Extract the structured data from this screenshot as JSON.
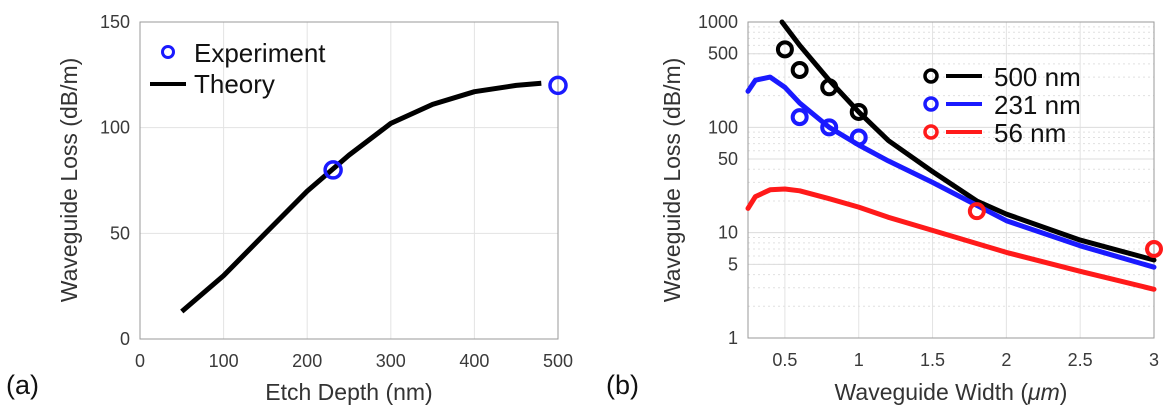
{
  "chart_data": [
    {
      "panel_label": "(a)",
      "type": "line",
      "xlabel": "Etch Depth (nm)",
      "ylabel": "Waveguide Loss (dB/m)",
      "xlim": [
        0,
        500
      ],
      "ylim": [
        0,
        150
      ],
      "xticks": [
        0,
        100,
        200,
        300,
        400,
        500
      ],
      "yticks": [
        0,
        50,
        100,
        150
      ],
      "grid": true,
      "legend_position": "top-left",
      "series": [
        {
          "name": "Experiment",
          "kind": "scatter",
          "color": "#1a1aff",
          "x": [
            231,
            500
          ],
          "y": [
            80,
            120
          ]
        },
        {
          "name": "Theory",
          "kind": "line",
          "color": "#000000",
          "x": [
            50,
            100,
            150,
            200,
            250,
            300,
            350,
            400,
            450,
            480
          ],
          "y": [
            13,
            30,
            50,
            70,
            87,
            102,
            111,
            117,
            120,
            121
          ]
        }
      ]
    },
    {
      "panel_label": "(b)",
      "type": "line",
      "xlabel_prefix": "Waveguide Width (",
      "xlabel_unit": "μm",
      "xlabel_suffix": ")",
      "ylabel": "Waveguide Loss (dB/m)",
      "xlim": [
        0.25,
        3.0
      ],
      "ylim": [
        1,
        1000
      ],
      "yscale": "log",
      "xticks": [
        0.5,
        1,
        1.5,
        2,
        2.5,
        3
      ],
      "yticks": [
        1,
        5,
        10,
        50,
        100,
        500,
        1000
      ],
      "grid": true,
      "legend_position": "top-right",
      "series": [
        {
          "name": "500 nm",
          "color": "#000000",
          "x": [
            0.48,
            0.6,
            0.8,
            1.0,
            1.2,
            1.5,
            1.8,
            2.0,
            2.5,
            3.0
          ],
          "y": [
            1000,
            600,
            280,
            140,
            75,
            38,
            20,
            15,
            8.5,
            5.5
          ],
          "experiment": {
            "x": [
              0.5,
              0.6,
              0.8,
              1.0
            ],
            "y": [
              550,
              350,
              240,
              140
            ]
          }
        },
        {
          "name": "231 nm",
          "color": "#1a1aff",
          "x": [
            0.25,
            0.3,
            0.4,
            0.5,
            0.6,
            0.8,
            1.0,
            1.2,
            1.5,
            2.0,
            2.5,
            3.0
          ],
          "y": [
            220,
            280,
            300,
            240,
            170,
            100,
            68,
            48,
            30,
            13,
            7.5,
            4.7
          ],
          "experiment": {
            "x": [
              0.6,
              0.8,
              1.0
            ],
            "y": [
              125,
              100,
              80
            ]
          }
        },
        {
          "name": "56 nm",
          "color": "#ff1a1a",
          "x": [
            0.25,
            0.3,
            0.4,
            0.5,
            0.6,
            0.8,
            1.0,
            1.2,
            1.5,
            2.0,
            2.5,
            3.0
          ],
          "y": [
            17,
            22,
            25.5,
            26,
            25,
            21,
            17.5,
            14,
            10.5,
            6.5,
            4.3,
            2.9
          ],
          "experiment": {
            "x": [
              1.8,
              3.0
            ],
            "y": [
              16,
              7
            ]
          }
        }
      ]
    }
  ]
}
